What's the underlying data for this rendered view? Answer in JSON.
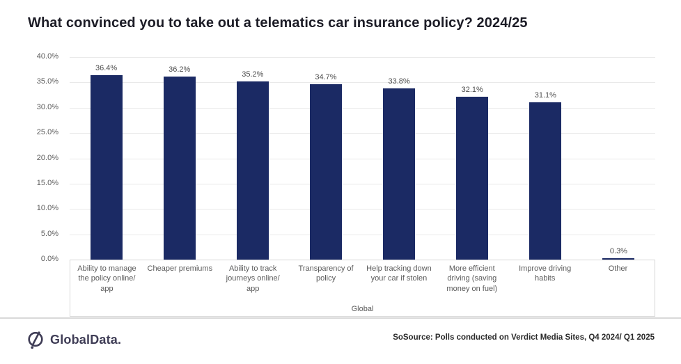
{
  "page": {
    "title": "What convinced you to take out a telematics car insurance policy? 2024/25",
    "footer": {
      "logo_text": "GlobalData.",
      "source": "SoSource: Polls conducted on Verdict Media Sites, Q4 2024/ Q1 2025"
    }
  },
  "colors": {
    "bar": "#1b2a64",
    "title_text": "#1c1c26",
    "axis_text": "#595959",
    "value_label_text": "#4d4d4d",
    "gridline": "#e9e9e9",
    "box_border": "#d6d6d6",
    "separator": "#d9d9d9",
    "logo": "#3f3d56"
  },
  "chart_data": {
    "type": "bar",
    "title": "What convinced you to take out a telematics car insurance policy? 2024/25",
    "categories": [
      "Ability to manage the policy online/ app",
      "Cheaper premiums",
      "Ability to track journeys online/ app",
      "Transparency of policy",
      "Help tracking down your car if stolen",
      "More efficient driving (saving money on fuel)",
      "Improve driving habits",
      "Other"
    ],
    "values": [
      36.4,
      36.2,
      35.2,
      34.7,
      33.8,
      32.1,
      31.1,
      0.3
    ],
    "labels": [
      "36.4%",
      "36.2%",
      "35.2%",
      "34.7%",
      "33.8%",
      "32.1%",
      "31.1%",
      "0.3%"
    ],
    "group_label": "Global",
    "xlabel": "",
    "ylabel": "",
    "ylim": [
      0,
      40
    ],
    "yticks": [
      "0.0%",
      "5.0%",
      "10.0%",
      "15.0%",
      "20.0%",
      "25.0%",
      "30.0%",
      "35.0%",
      "40.0%"
    ],
    "grid": true,
    "legend": false,
    "bar_color": "#1b2a64"
  }
}
